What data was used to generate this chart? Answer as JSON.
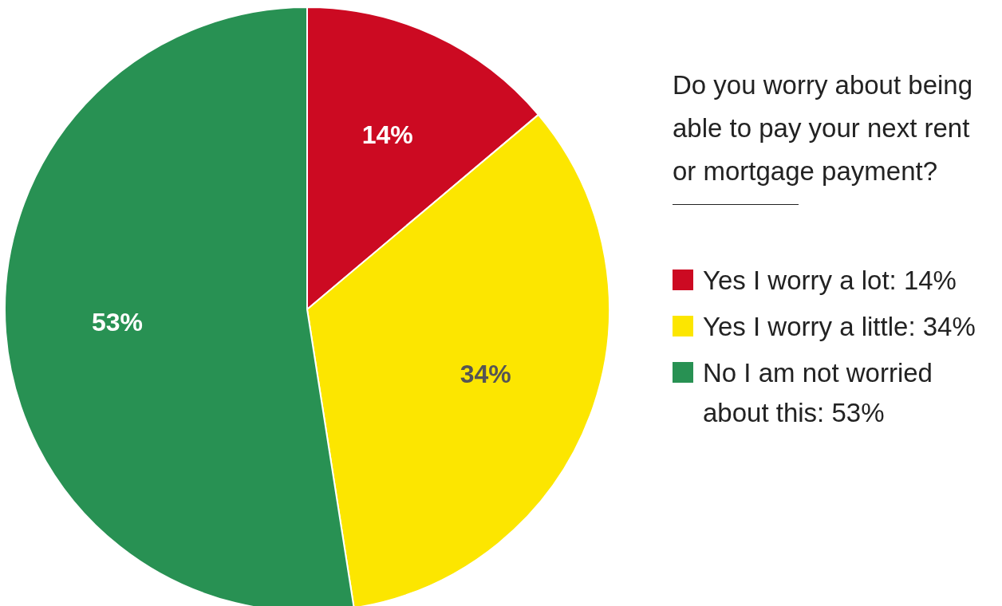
{
  "chart_data": {
    "type": "pie",
    "title": "Do you worry about being able to pay your next rent or mortgage payment?",
    "categories": [
      "Yes I worry a lot: 14%",
      "Yes I worry a little: 34%",
      "No I am not worried about this: 53%"
    ],
    "values": [
      14,
      34,
      53
    ],
    "colors": [
      "#cc0a22",
      "#fce600",
      "#289153"
    ],
    "value_labels": [
      "14%",
      "34%",
      "53%"
    ],
    "legend": "right"
  }
}
